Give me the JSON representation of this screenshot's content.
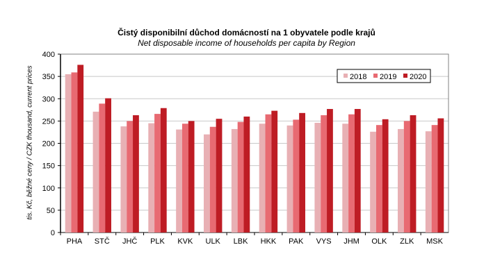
{
  "chart_data": {
    "type": "bar",
    "title": "Čistý disponibilní důchod domácností na 1 obyvatele podle krajů",
    "subtitle": "Net disposable income of households per capita by Region",
    "xlabel": "",
    "ylabel": "tis. Kč, běžné ceny / CZK thousand, current prices",
    "ylim": [
      0,
      400
    ],
    "yticks": [
      0,
      50,
      100,
      150,
      200,
      250,
      300,
      350,
      400
    ],
    "grid": true,
    "legend_position": "top-right",
    "categories": [
      "PHA",
      "STČ",
      "JHČ",
      "PLK",
      "KVK",
      "ULK",
      "LBK",
      "HKK",
      "PAK",
      "VYS",
      "JHM",
      "OLK",
      "ZLK",
      "MSK"
    ],
    "series": [
      {
        "name": "2018",
        "color": "#e8b0b4",
        "values": [
          355,
          271,
          238,
          245,
          231,
          220,
          232,
          244,
          240,
          246,
          244,
          226,
          232,
          227
        ]
      },
      {
        "name": "2019",
        "color": "#e86a72",
        "values": [
          359,
          289,
          250,
          266,
          244,
          237,
          248,
          265,
          253,
          263,
          265,
          241,
          250,
          241
        ]
      },
      {
        "name": "2020",
        "color": "#be1c24",
        "values": [
          376,
          301,
          263,
          279,
          250,
          255,
          260,
          273,
          268,
          277,
          277,
          254,
          263,
          256
        ]
      }
    ]
  }
}
